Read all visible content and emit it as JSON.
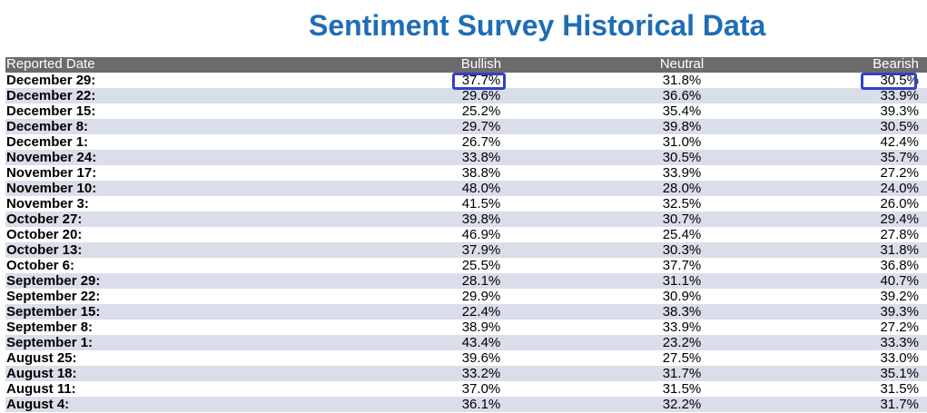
{
  "title": "Sentiment Survey Historical Data",
  "columns": {
    "date": "Reported Date",
    "bullish": "Bullish",
    "neutral": "Neutral",
    "bearish": "Bearish"
  },
  "rows": [
    {
      "date": "December 29:",
      "bullish": "37.7%",
      "neutral": "31.8%",
      "bearish": "30.5%"
    },
    {
      "date": "December 22:",
      "bullish": "29.6%",
      "neutral": "36.6%",
      "bearish": "33.9%"
    },
    {
      "date": "December 15:",
      "bullish": "25.2%",
      "neutral": "35.4%",
      "bearish": "39.3%"
    },
    {
      "date": "December 8:",
      "bullish": "29.7%",
      "neutral": "39.8%",
      "bearish": "30.5%"
    },
    {
      "date": "December 1:",
      "bullish": "26.7%",
      "neutral": "31.0%",
      "bearish": "42.4%"
    },
    {
      "date": "November 24:",
      "bullish": "33.8%",
      "neutral": "30.5%",
      "bearish": "35.7%"
    },
    {
      "date": "November 17:",
      "bullish": "38.8%",
      "neutral": "33.9%",
      "bearish": "27.2%"
    },
    {
      "date": "November 10:",
      "bullish": "48.0%",
      "neutral": "28.0%",
      "bearish": "24.0%"
    },
    {
      "date": "November 3:",
      "bullish": "41.5%",
      "neutral": "32.5%",
      "bearish": "26.0%"
    },
    {
      "date": "October 27:",
      "bullish": "39.8%",
      "neutral": "30.7%",
      "bearish": "29.4%"
    },
    {
      "date": "October 20:",
      "bullish": "46.9%",
      "neutral": "25.4%",
      "bearish": "27.8%"
    },
    {
      "date": "October 13:",
      "bullish": "37.9%",
      "neutral": "30.3%",
      "bearish": "31.8%"
    },
    {
      "date": "October 6:",
      "bullish": "25.5%",
      "neutral": "37.7%",
      "bearish": "36.8%"
    },
    {
      "date": "September 29:",
      "bullish": "28.1%",
      "neutral": "31.1%",
      "bearish": "40.7%"
    },
    {
      "date": "September 22:",
      "bullish": "29.9%",
      "neutral": "30.9%",
      "bearish": "39.2%"
    },
    {
      "date": "September 15:",
      "bullish": "22.4%",
      "neutral": "38.3%",
      "bearish": "39.3%"
    },
    {
      "date": "September 8:",
      "bullish": "38.9%",
      "neutral": "33.9%",
      "bearish": "27.2%"
    },
    {
      "date": "September 1:",
      "bullish": "43.4%",
      "neutral": "23.2%",
      "bearish": "33.3%"
    },
    {
      "date": "August 25:",
      "bullish": "39.6%",
      "neutral": "27.5%",
      "bearish": "33.0%"
    },
    {
      "date": "August 18:",
      "bullish": "33.2%",
      "neutral": "31.7%",
      "bearish": "35.1%"
    },
    {
      "date": "August 11:",
      "bullish": "37.0%",
      "neutral": "31.5%",
      "bearish": "31.5%"
    },
    {
      "date": "August 4:",
      "bullish": "36.1%",
      "neutral": "32.2%",
      "bearish": "31.7%"
    }
  ],
  "colors": {
    "title": "#1f6db5",
    "header_bg": "#6b6b6b",
    "alt_row_bg": "#d9deea",
    "highlight_border": "#3340c8"
  }
}
